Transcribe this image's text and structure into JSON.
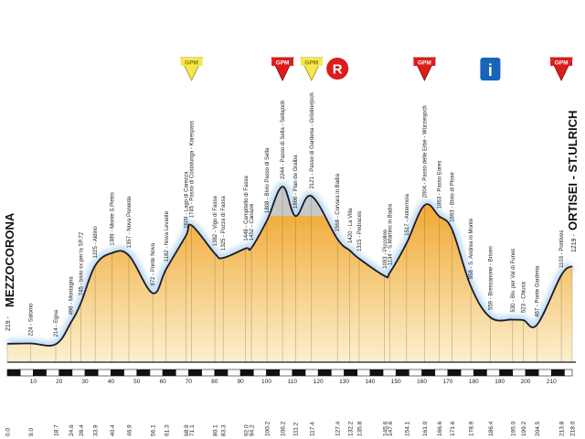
{
  "chart_data": {
    "type": "area",
    "title": "",
    "xlabel": "",
    "ylabel": "",
    "xlim": [
      0,
      218
    ],
    "ylim": [
      0,
      2500
    ],
    "grid": false,
    "colors": {
      "fill_top": "#f0a020",
      "fill_bottom": "#fbf0cf",
      "outline": "#1a1a2e",
      "glow": "#b8d8f0",
      "gpm_red": "#dd1c1c",
      "gpm_yellow": "#f6e84c",
      "info_blue": "#1864b8",
      "grey_peak": "#c8c8c8"
    },
    "start": {
      "name": "MEZZOCORONA",
      "altitude": "219"
    },
    "finish": {
      "name": "ORTISEI - ST.ULRICH",
      "altitude": "1219"
    },
    "scale_ticks": [
      "10",
      "20",
      "30",
      "40",
      "50",
      "60",
      "70",
      "80",
      "90",
      "100",
      "110",
      "120",
      "130",
      "140",
      "150",
      "160",
      "170",
      "180",
      "190",
      "200",
      "210"
    ],
    "icons": [
      {
        "type": "gpm-yellow",
        "label": "GPM",
        "km": 71.1
      },
      {
        "type": "gpm-red",
        "label": "GPM",
        "km": 106.2
      },
      {
        "type": "gpm-yellow",
        "label": "GPM",
        "km": 117.4
      },
      {
        "type": "ristoro",
        "label": "R",
        "km": 127.4
      },
      {
        "type": "gpm-red",
        "label": "GPM",
        "km": 161.0
      },
      {
        "type": "info",
        "label": "i",
        "km": 186.4
      },
      {
        "type": "gpm-red",
        "label": "GPM",
        "km": 213.8
      }
    ],
    "waypoints": [
      {
        "km": 0.0,
        "km_label": "0.0",
        "alt": 219,
        "text": "219 - MEZZOCORONA"
      },
      {
        "km": 9.0,
        "km_label": "9.0",
        "alt": 224,
        "text": "224 - Salorno"
      },
      {
        "km": 18.7,
        "km_label": "18.7",
        "alt": 214,
        "text": "214 - Egna"
      },
      {
        "km": 24.6,
        "km_label": "24.6",
        "alt": 496,
        "text": "496 - Montagna"
      },
      {
        "km": 28.4,
        "km_label": "28.4",
        "alt": 745,
        "text": "745 - bivio sx per la SP.72"
      },
      {
        "km": 33.9,
        "km_label": "33.9",
        "alt": 1225,
        "text": "1225 - Aldino"
      },
      {
        "km": 40.4,
        "km_label": "40.4",
        "alt": 1389,
        "text": "1389 - Monte S.Pietro"
      },
      {
        "km": 46.9,
        "km_label": "46.9",
        "alt": 1357,
        "text": "1357 - Nova Ponente"
      },
      {
        "km": 56.1,
        "km_label": "56.1",
        "alt": 872,
        "text": "872 - Ponte Nova"
      },
      {
        "km": 61.3,
        "km_label": "61.3",
        "alt": 1182,
        "text": "1182 - Nova Levante"
      },
      {
        "km": 68.9,
        "km_label": "68.9",
        "alt": 1609,
        "text": "1609 - Lago di Carezza"
      },
      {
        "km": 71.1,
        "km_label": "71.1",
        "alt": 1745,
        "text": "1745 - Passo di Costalunga - Karerpass"
      },
      {
        "km": 80.1,
        "km_label": "80.1",
        "alt": 1382,
        "text": "1382 - Vigo di Fassa"
      },
      {
        "km": 83.3,
        "km_label": "83.3",
        "alt": 1325,
        "text": "1325 - Pozza di Fassa"
      },
      {
        "km": 92.0,
        "km_label": "92.0",
        "alt": 1448,
        "text": "1448 - Campitello di Fassa"
      },
      {
        "km": 94.2,
        "km_label": "94.2",
        "alt": 1452,
        "text": "1452 - Canazei"
      },
      {
        "km": 100.2,
        "km_label": "100.2",
        "alt": 1808,
        "text": "1808 - Bivio Passo di Sella"
      },
      {
        "km": 106.2,
        "km_label": "106.2",
        "alt": 2244,
        "text": "2244 - Passo di Sella - Sellajoch"
      },
      {
        "km": 111.2,
        "km_label": "111.2",
        "alt": 1866,
        "text": "1866 - Plan de Gralba"
      },
      {
        "km": 117.4,
        "km_label": "117.4",
        "alt": 2121,
        "text": "2121 - Passo di Gardena - Grödnerjoch"
      },
      {
        "km": 127.4,
        "km_label": "127.4",
        "alt": 1568,
        "text": "1568 - Corvara in Badia"
      },
      {
        "km": 132.2,
        "km_label": "132.2",
        "alt": 1420,
        "text": "1420 - La Villa"
      },
      {
        "km": 135.8,
        "km_label": "135.8",
        "alt": 1315,
        "text": "1315 - Pedraces"
      },
      {
        "km": 145.6,
        "km_label": "145.6",
        "alt": 1093,
        "text": "1093 - Piccolino"
      },
      {
        "km": 147.6,
        "km_label": "147.6",
        "alt": 1134,
        "text": "1134 - S.Martino in Badia"
      },
      {
        "km": 154.1,
        "km_label": "154.1",
        "alt": 1517,
        "text": "1517 - Antermoia"
      },
      {
        "km": 161.0,
        "km_label": "161.0",
        "alt": 2004,
        "text": "2004 - Passo delle Erbe - Würzenjoch"
      },
      {
        "km": 166.6,
        "km_label": "166.6",
        "alt": 1863,
        "text": "1863 - Passo Eores"
      },
      {
        "km": 171.6,
        "km_label": "171.6",
        "alt": 1693,
        "text": "1693 - Bivio di Plose"
      },
      {
        "km": 178.9,
        "km_label": "178.9",
        "alt": 958,
        "text": "958 - S. Andrea in Monte"
      },
      {
        "km": 186.4,
        "km_label": "186.4",
        "alt": 559,
        "text": "559 - Bressanone - Brixen"
      },
      {
        "km": 195.0,
        "km_label": "195.0",
        "alt": 530,
        "text": "530 - Biv. per Val di Funes"
      },
      {
        "km": 199.2,
        "km_label": "199.2",
        "alt": 523,
        "text": "523 - Chiusa"
      },
      {
        "km": 204.5,
        "km_label": "204.5",
        "alt": 467,
        "text": "467 - Ponte Gardena"
      },
      {
        "km": 213.8,
        "km_label": "213.8",
        "alt": 1103,
        "text": "1103 - Pontives"
      },
      {
        "km": 218.0,
        "km_label": "218.0",
        "alt": 1219,
        "text": "1219 - ORTISEI - ST.ULRICH"
      }
    ]
  }
}
